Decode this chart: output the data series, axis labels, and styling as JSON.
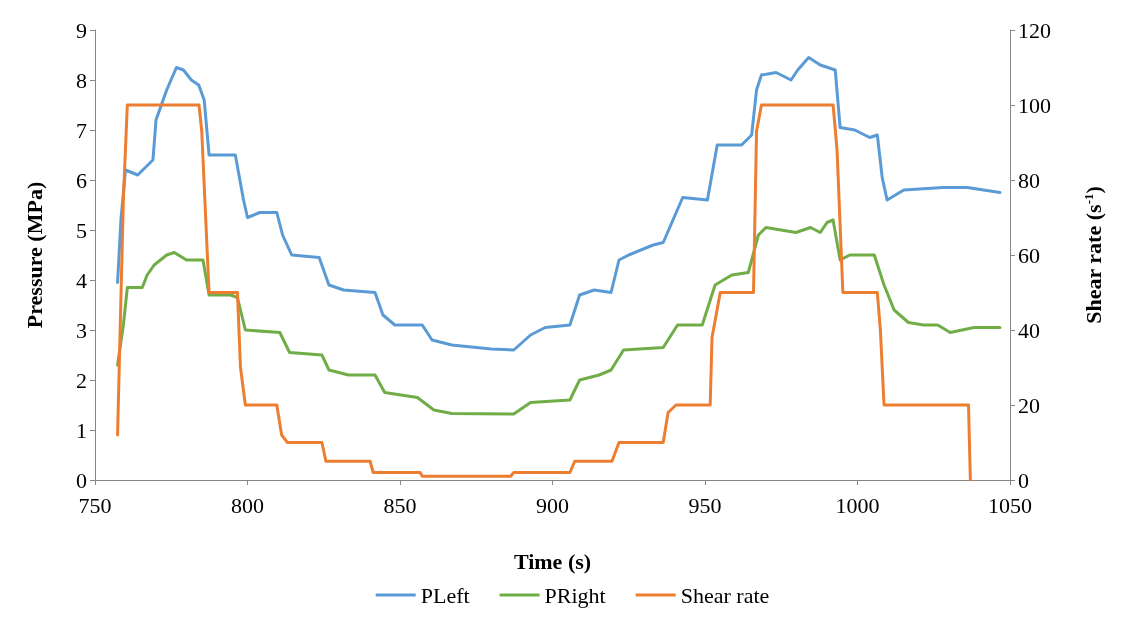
{
  "chart_data": {
    "type": "line",
    "xlabel": "Time (s)",
    "ylabel": "Pressure (MPa)",
    "y2label": "Shear rate (s$^{-1}$)",
    "xlim": [
      750,
      1050
    ],
    "xticks": [
      750,
      800,
      850,
      900,
      950,
      1000,
      1050
    ],
    "ylim": [
      0,
      9
    ],
    "yticks": [
      0,
      1,
      2,
      3,
      4,
      5,
      6,
      7,
      8,
      9
    ],
    "y2lim": [
      0,
      120
    ],
    "y2ticks": [
      0,
      20,
      40,
      60,
      80,
      100,
      120
    ],
    "grid": false,
    "legend": "bottom",
    "marker": "none",
    "line_style": "solid",
    "series": [
      {
        "name": "PLeft",
        "color": "#5b9bd5",
        "x": [
          757.4,
          758.5,
          760,
          764,
          769,
          770,
          773.5,
          776.7,
          779,
          781.6,
          784,
          785.8,
          787.4,
          796,
          798.7,
          800,
          804,
          809.6,
          811.5,
          814.5,
          823.5,
          826.7,
          831.5,
          841.8,
          844.4,
          848.3,
          857.3,
          860.5,
          867,
          879.9,
          887.3,
          892.8,
          897.6,
          905.7,
          908.9,
          913.7,
          919.2,
          921.8,
          925,
          933,
          936.3,
          939.5,
          942.7,
          950.8,
          954,
          962,
          965.3,
          966.9,
          968.5,
          973.3,
          978.2,
          980.4,
          984,
          987.8,
          992.7,
          994.3,
          999.1,
          1004,
          1006.5,
          1008.1,
          1009.7,
          1015.2,
          1028,
          1036,
          1046.7
        ],
        "values": [
          3.95,
          5.2,
          6.2,
          6.1,
          6.4,
          7.2,
          7.8,
          8.25,
          8.2,
          8.0,
          7.9,
          7.6,
          6.5,
          6.5,
          5.6,
          5.25,
          5.35,
          5.35,
          4.9,
          4.5,
          4.45,
          3.9,
          3.8,
          3.75,
          3.3,
          3.1,
          3.1,
          2.8,
          2.7,
          2.62,
          2.6,
          2.9,
          3.05,
          3.1,
          3.7,
          3.8,
          3.75,
          4.4,
          4.5,
          4.7,
          4.75,
          5.2,
          5.65,
          5.6,
          6.7,
          6.7,
          6.9,
          7.8,
          8.1,
          8.15,
          8.0,
          8.2,
          8.45,
          8.3,
          8.2,
          7.05,
          7.0,
          6.85,
          6.9,
          6.05,
          5.6,
          5.8,
          5.85,
          5.85,
          5.75
        ]
      },
      {
        "name": "PRight",
        "color": "#70ad47",
        "x": [
          757.4,
          759.3,
          760.6,
          765.5,
          767.1,
          769.4,
          773.5,
          776,
          780,
          785.4,
          787.4,
          794.5,
          796.7,
          799.3,
          810.6,
          813.8,
          824.4,
          826.7,
          833.1,
          841.8,
          845,
          855.7,
          861.1,
          867,
          887.3,
          892.8,
          905.7,
          908.9,
          915.3,
          919.2,
          923.3,
          936.3,
          941,
          949.1,
          953.3,
          958.8,
          964.2,
          967.5,
          970,
          979.8,
          984.6,
          987.8,
          990,
          992,
          994.3,
          997.5,
          1005.5,
          1008.7,
          1012,
          1016.7,
          1021.6,
          1026.3,
          1030.4,
          1038.2,
          1046.7
        ],
        "values": [
          2.3,
          3.1,
          3.85,
          3.85,
          4.1,
          4.3,
          4.5,
          4.55,
          4.4,
          4.4,
          3.7,
          3.7,
          3.65,
          3.0,
          2.95,
          2.55,
          2.5,
          2.2,
          2.1,
          2.1,
          1.75,
          1.65,
          1.4,
          1.33,
          1.32,
          1.55,
          1.6,
          2.0,
          2.1,
          2.2,
          2.6,
          2.65,
          3.1,
          3.1,
          3.9,
          4.1,
          4.15,
          4.9,
          5.05,
          4.95,
          5.05,
          4.95,
          5.15,
          5.2,
          4.4,
          4.5,
          4.5,
          3.9,
          3.4,
          3.15,
          3.1,
          3.1,
          2.95,
          3.05,
          3.05
        ]
      },
      {
        "name": "Shear rate",
        "color": "#ed7d31",
        "axis": "y2",
        "x": [
          757.4,
          759.3,
          760.6,
          784.1,
          785,
          787.4,
          796.7,
          797.7,
          799.3,
          809.6,
          811.2,
          813.1,
          824.4,
          825.7,
          840.2,
          841.2,
          856.6,
          857.3,
          886.3,
          887.3,
          905.7,
          907.3,
          919.5,
          921.8,
          936.3,
          937.9,
          940.5,
          951.7,
          952.3,
          955,
          965.9,
          966.9,
          968.5,
          992,
          993.3,
          995.2,
          1006.5,
          1007.5,
          1008.7,
          1036.4,
          1037
        ],
        "values": [
          12,
          75,
          100,
          100,
          93,
          50,
          50,
          30,
          20,
          20,
          12,
          10,
          10,
          5,
          5,
          2,
          2,
          1,
          1,
          2,
          2,
          5,
          5,
          10,
          10,
          18,
          20,
          20,
          38,
          50,
          50,
          93,
          100,
          100,
          88,
          50,
          50,
          40,
          20,
          20,
          0
        ]
      }
    ]
  }
}
